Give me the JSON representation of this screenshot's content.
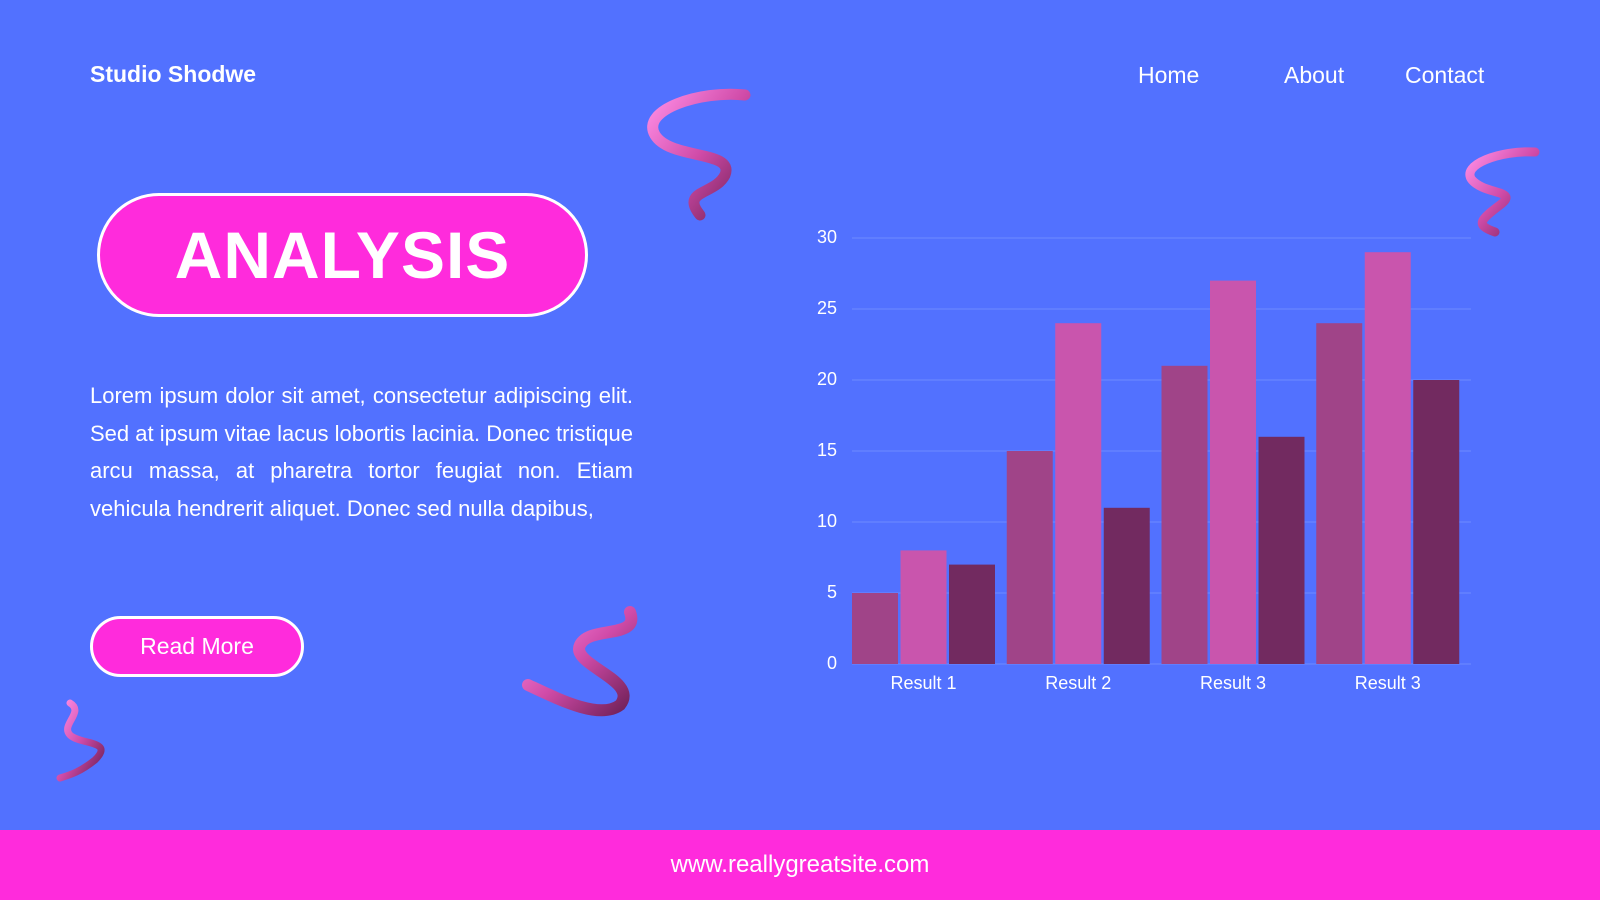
{
  "header": {
    "brand": "Studio Shodwe",
    "nav": [
      "Home",
      "About",
      "Contact"
    ]
  },
  "hero": {
    "title": "ANALYSIS",
    "body": "Lorem ipsum dolor sit amet, consectetur adipiscing elit. Sed at ipsum vitae lacus lobortis lacinia. Donec tristique arcu massa, at pharetra tortor feugiat non. Etiam vehicula hendrerit aliquet. Donec sed nulla dapibus,",
    "button": "Read More"
  },
  "footer": {
    "url": "www.reallygreatsite.com"
  },
  "chart_data": {
    "type": "bar",
    "categories": [
      "Result 1",
      "Result 2",
      "Result 3",
      "Result 3"
    ],
    "series": [
      {
        "color": "#a04488",
        "values": [
          5,
          15,
          21,
          24
        ]
      },
      {
        "color": "#c955ad",
        "values": [
          8,
          24,
          27,
          29
        ]
      },
      {
        "color": "#722a60",
        "values": [
          7,
          11,
          16,
          20
        ]
      }
    ],
    "ylim": [
      0,
      30
    ],
    "yticks": [
      0,
      5,
      10,
      15,
      20,
      25,
      30
    ],
    "grid": true
  }
}
